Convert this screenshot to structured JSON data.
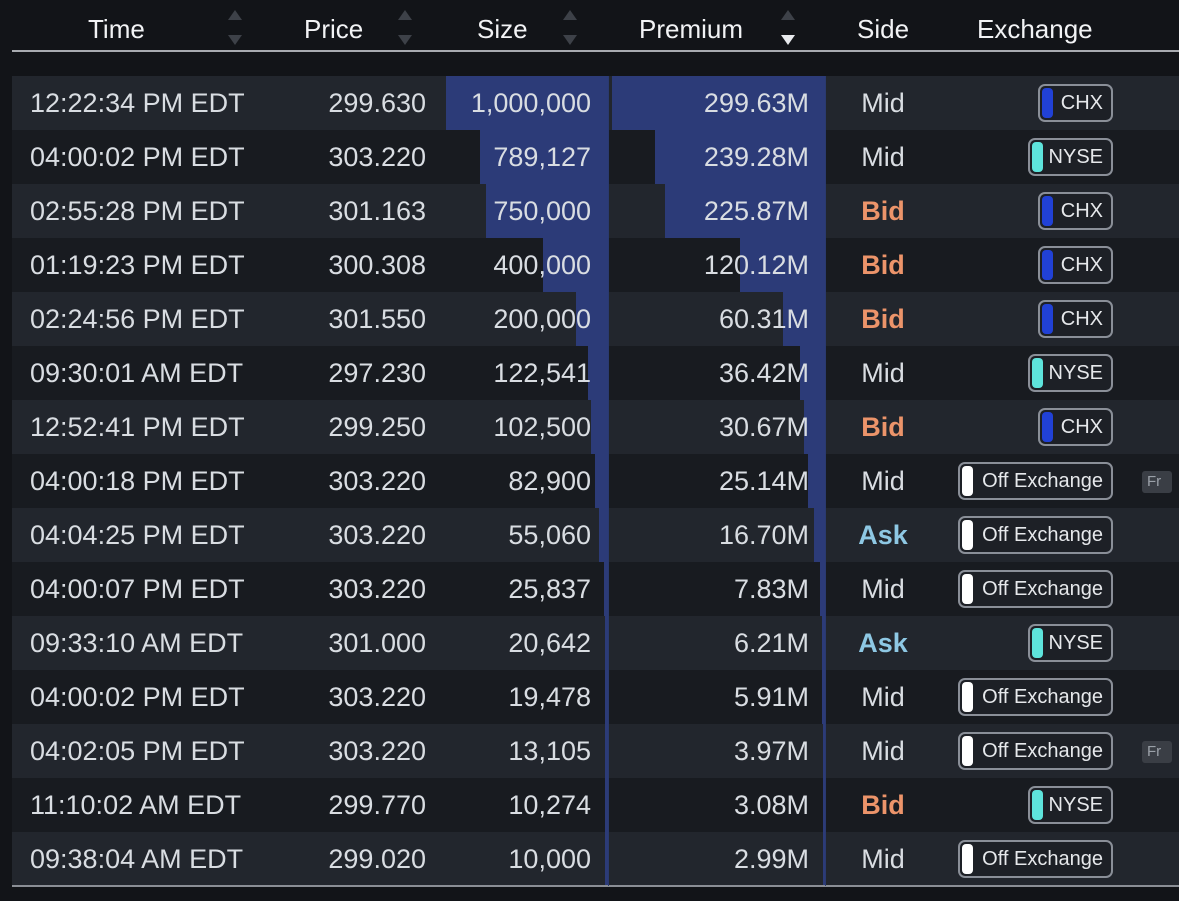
{
  "columns": {
    "time": "Time",
    "price": "Price",
    "size": "Size",
    "premium": "Premium",
    "side": "Side",
    "exchange": "Exchange"
  },
  "sort": {
    "column": "Premium",
    "direction": "descending"
  },
  "colors": {
    "bar": "#2c3b78",
    "chx": "#2141d6",
    "nyse": "#5ee4dc",
    "off_exchange": "#ffffff",
    "bid": "#ec946a",
    "ask": "#8ec8e4"
  },
  "extra_tag": "Fr",
  "rows": [
    {
      "time": "12:22:34 PM EDT",
      "price": "299.630",
      "size": "1,000,000",
      "premium": "299.63M",
      "side": "Mid",
      "exchange": "CHX",
      "size_frac": 1.0,
      "premium_frac": 1.0
    },
    {
      "time": "04:00:02 PM EDT",
      "price": "303.220",
      "size": "789,127",
      "premium": "239.28M",
      "side": "Mid",
      "exchange": "NYSE",
      "size_frac": 0.789,
      "premium_frac": 0.799,
      "tag": false
    },
    {
      "time": "02:55:28 PM EDT",
      "price": "301.163",
      "size": "750,000",
      "premium": "225.87M",
      "side": "Bid",
      "exchange": "CHX",
      "size_frac": 0.75,
      "premium_frac": 0.754
    },
    {
      "time": "01:19:23 PM EDT",
      "price": "300.308",
      "size": "400,000",
      "premium": "120.12M",
      "side": "Bid",
      "exchange": "CHX",
      "size_frac": 0.4,
      "premium_frac": 0.401
    },
    {
      "time": "02:24:56 PM EDT",
      "price": "301.550",
      "size": "200,000",
      "premium": "60.31M",
      "side": "Bid",
      "exchange": "CHX",
      "size_frac": 0.2,
      "premium_frac": 0.201
    },
    {
      "time": "09:30:01 AM EDT",
      "price": "297.230",
      "size": "122,541",
      "premium": "36.42M",
      "side": "Mid",
      "exchange": "NYSE",
      "size_frac": 0.123,
      "premium_frac": 0.122
    },
    {
      "time": "12:52:41 PM EDT",
      "price": "299.250",
      "size": "102,500",
      "premium": "30.67M",
      "side": "Bid",
      "exchange": "CHX",
      "size_frac": 0.103,
      "premium_frac": 0.102
    },
    {
      "time": "04:00:18 PM EDT",
      "price": "303.220",
      "size": "82,900",
      "premium": "25.14M",
      "side": "Mid",
      "exchange": "Off Exchange",
      "size_frac": 0.083,
      "premium_frac": 0.084,
      "tag": true
    },
    {
      "time": "04:04:25 PM EDT",
      "price": "303.220",
      "size": "55,060",
      "premium": "16.70M",
      "side": "Ask",
      "exchange": "Off Exchange",
      "size_frac": 0.055,
      "premium_frac": 0.056
    },
    {
      "time": "04:00:07 PM EDT",
      "price": "303.220",
      "size": "25,837",
      "premium": "7.83M",
      "side": "Mid",
      "exchange": "Off Exchange",
      "size_frac": 0.026,
      "premium_frac": 0.026
    },
    {
      "time": "09:33:10 AM EDT",
      "price": "301.000",
      "size": "20,642",
      "premium": "6.21M",
      "side": "Ask",
      "exchange": "NYSE",
      "size_frac": 0.021,
      "premium_frac": 0.021
    },
    {
      "time": "04:00:02 PM EDT",
      "price": "303.220",
      "size": "19,478",
      "premium": "5.91M",
      "side": "Mid",
      "exchange": "Off Exchange",
      "size_frac": 0.019,
      "premium_frac": 0.02
    },
    {
      "time": "04:02:05 PM EDT",
      "price": "303.220",
      "size": "13,105",
      "premium": "3.97M",
      "side": "Mid",
      "exchange": "Off Exchange",
      "size_frac": 0.013,
      "premium_frac": 0.013,
      "tag": true
    },
    {
      "time": "11:10:02 AM EDT",
      "price": "299.770",
      "size": "10,274",
      "premium": "3.08M",
      "side": "Bid",
      "exchange": "NYSE",
      "size_frac": 0.01,
      "premium_frac": 0.01
    },
    {
      "time": "09:38:04 AM EDT",
      "price": "299.020",
      "size": "10,000",
      "premium": "2.99M",
      "side": "Mid",
      "exchange": "Off Exchange",
      "size_frac": 0.01,
      "premium_frac": 0.01
    }
  ]
}
